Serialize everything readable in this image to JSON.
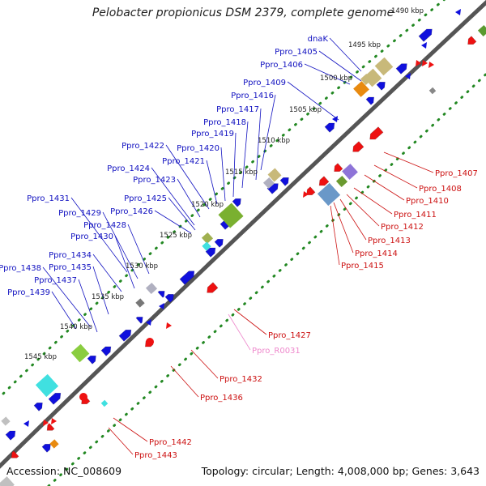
{
  "title": "Pelobacter propionicus DSM 2379, complete genome",
  "footer": {
    "accession": "Accession: NC_008609",
    "summary": "Topology: circular; Length: 4,008,000 bp; Genes: 3,643"
  },
  "colors": {
    "forward_label": "#1010c0",
    "reverse_label": "#cc1010",
    "rna_label": "#ee88cc",
    "backbone": "#555555",
    "tick_dots": "#228822",
    "cds_forward": "#1010dd",
    "cds_reverse": "#ee1111"
  },
  "kbp_ticks": [
    "1490 kbp",
    "1495 kbp",
    "1500 kbp",
    "1505 kbp",
    "1510 kbp",
    "1515 kbp",
    "1520 kbp",
    "1525 kbp",
    "1530 kbp",
    "1535 kbp",
    "1540 kbp",
    "1545 kbp"
  ],
  "forward_genes": [
    "dnaK",
    "Ppro_1405",
    "Ppro_1406",
    "Ppro_1409",
    "Ppro_1416",
    "Ppro_1417",
    "Ppro_1418",
    "Ppro_1419",
    "Ppro_1420",
    "Ppro_1421",
    "Ppro_1422",
    "Ppro_1424",
    "Ppro_1423",
    "Ppro_1425",
    "Ppro_1426",
    "Ppro_1431",
    "Ppro_1429",
    "Ppro_1428",
    "Ppro_1430",
    "Ppro_1434",
    "Ppro_1435",
    "Ppro_1438",
    "Ppro_1437",
    "Ppro_1439"
  ],
  "reverse_genes": [
    "Ppro_1407",
    "Ppro_1408",
    "Ppro_1410",
    "Ppro_1411",
    "Ppro_1412",
    "Ppro_1413",
    "Ppro_1414",
    "Ppro_1415",
    "Ppro_1427",
    "Ppro_R0031",
    "Ppro_1432",
    "Ppro_1436",
    "Ppro_1442",
    "Ppro_1443"
  ]
}
